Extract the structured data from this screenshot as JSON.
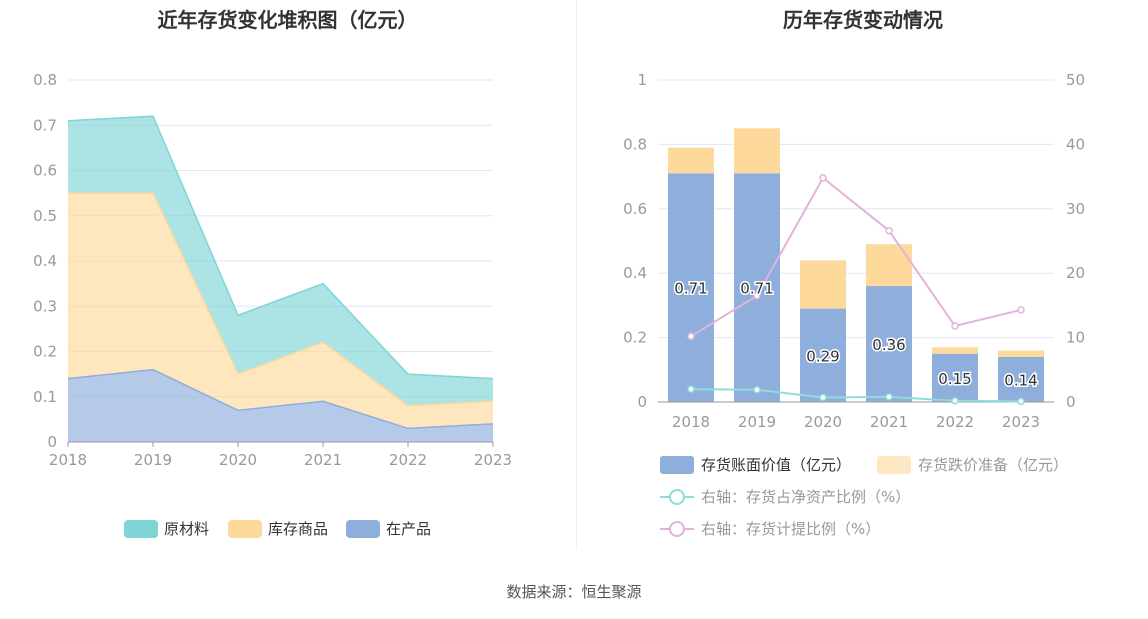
{
  "titles": {
    "left": "近年存货变化堆积图（亿元）",
    "right": "历年存货变动情况"
  },
  "source": "数据来源：恒生聚源",
  "colors": {
    "raw_materials": "#7fd4d6",
    "finished_goods": "#fdd99b",
    "wip": "#8eaedc",
    "book_value": "#8eaedc",
    "impairment": "#fdd99b",
    "ratio_net_assets": "#8fdcd8",
    "provision_ratio": "#e3b2dc",
    "grid": "#e3e6f3",
    "axis_text": "#999999"
  },
  "chart_data": [
    {
      "type": "area",
      "stacked": true,
      "x": [
        "2018",
        "2019",
        "2020",
        "2021",
        "2022",
        "2023"
      ],
      "ylim": [
        0,
        0.8
      ],
      "yticks": [
        "0",
        "0.1",
        "0.2",
        "0.3",
        "0.4",
        "0.5",
        "0.6",
        "0.7",
        "0.8"
      ],
      "series": [
        {
          "name": "在产品",
          "values": [
            0.14,
            0.16,
            0.07,
            0.09,
            0.03,
            0.04
          ]
        },
        {
          "name": "库存商品",
          "values": [
            0.41,
            0.39,
            0.08,
            0.13,
            0.05,
            0.05
          ]
        },
        {
          "name": "原材料",
          "values": [
            0.16,
            0.17,
            0.13,
            0.13,
            0.07,
            0.05
          ]
        }
      ],
      "legend": [
        "原材料",
        "库存商品",
        "在产品"
      ],
      "legend_position": "bottom"
    },
    {
      "type": "bar",
      "stacked": true,
      "categories": [
        "2018",
        "2019",
        "2020",
        "2021",
        "2022",
        "2023"
      ],
      "ylim": [
        0,
        1
      ],
      "yticks": [
        "0",
        "0.2",
        "0.4",
        "0.6",
        "0.8",
        "1"
      ],
      "y2lim": [
        0,
        50
      ],
      "y2ticks": [
        "0",
        "10",
        "20",
        "30",
        "40",
        "50"
      ],
      "series": [
        {
          "name": "存货账面价值（亿元）",
          "values": [
            0.71,
            0.71,
            0.29,
            0.36,
            0.15,
            0.14
          ],
          "labels": [
            "0.71",
            "0.71",
            "0.29",
            "0.36",
            "0.15",
            "0.14"
          ]
        },
        {
          "name": "存货跌价准备（亿元）",
          "values": [
            0.08,
            0.14,
            0.15,
            0.13,
            0.02,
            0.02
          ]
        },
        {
          "name": "右轴：存货占净资产比例（%）",
          "type": "line",
          "axis": "right",
          "values": [
            2.0,
            1.9,
            0.7,
            0.8,
            0.2,
            0.1
          ]
        },
        {
          "name": "右轴：存货计提比例（%）",
          "type": "line",
          "axis": "right",
          "values": [
            10.2,
            16.5,
            34.8,
            26.6,
            11.8,
            14.3
          ]
        }
      ],
      "legend_position": "bottom"
    }
  ]
}
